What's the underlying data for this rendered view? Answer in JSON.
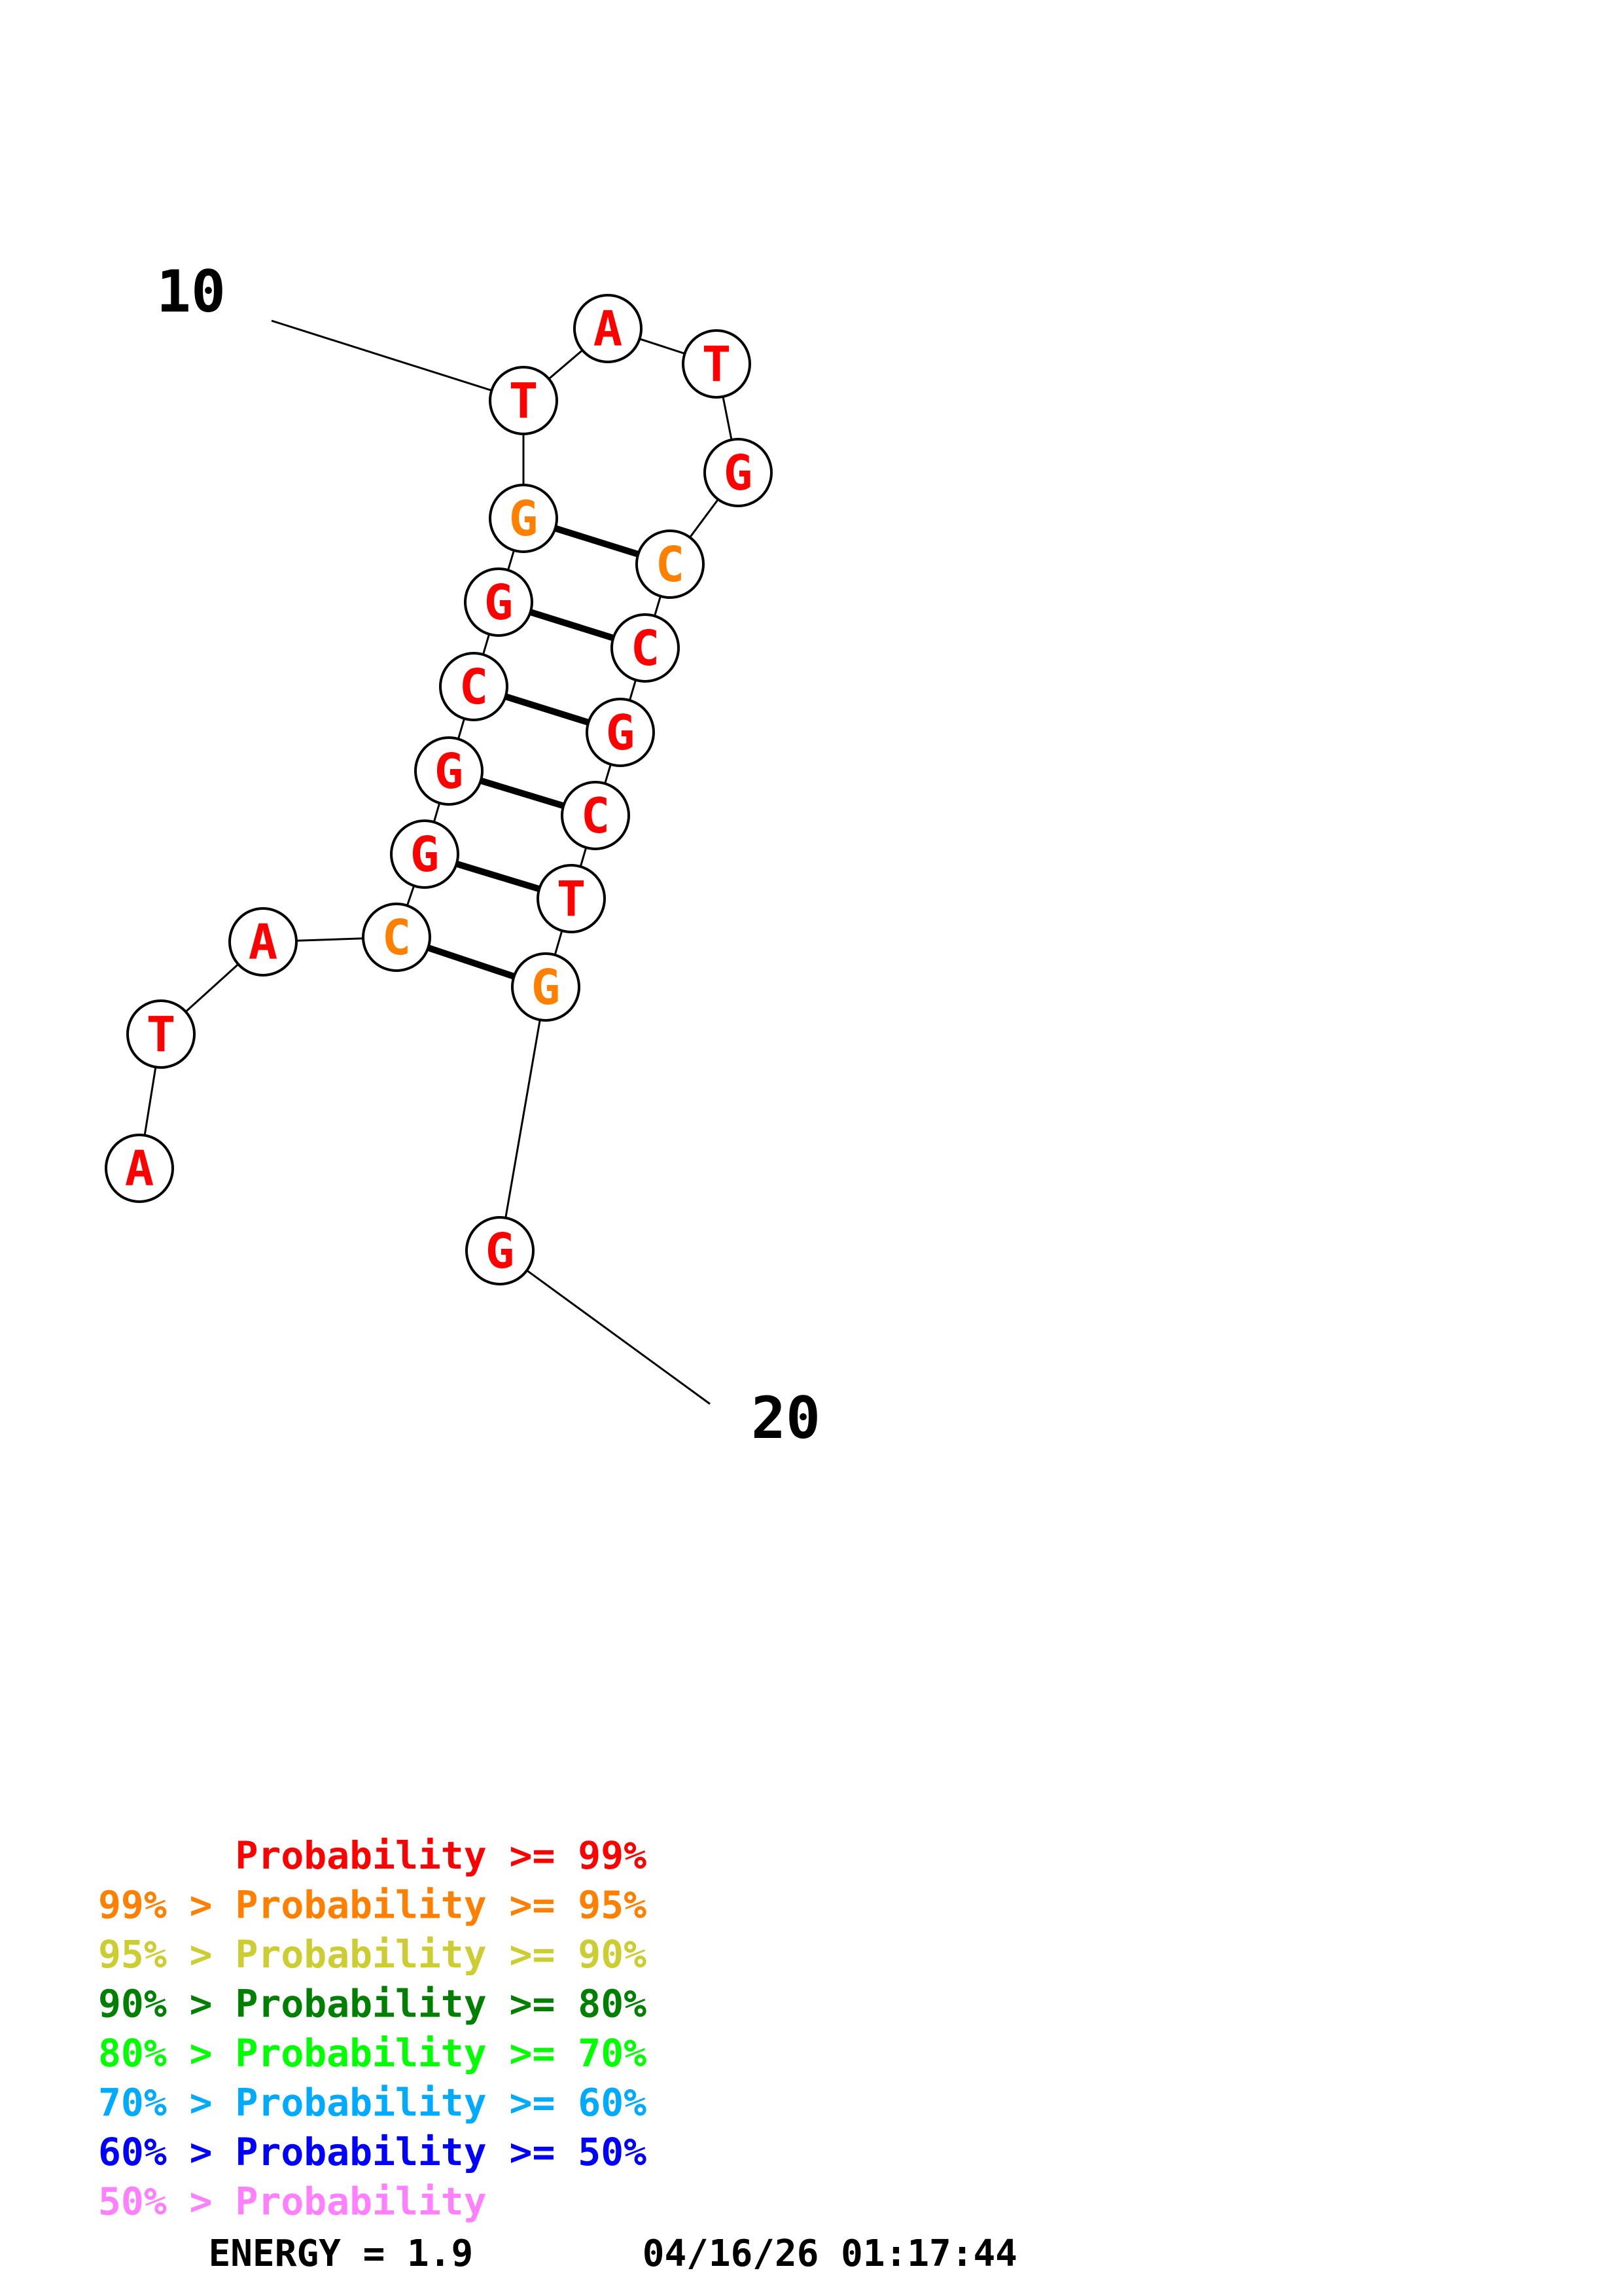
{
  "colors": {
    "p99": "#ff0000",
    "p95": "#ff8000",
    "p90": "#cccc33",
    "p80": "#008000",
    "p70": "#00ff00",
    "p60": "#00aaff",
    "p50": "#0000ff",
    "low": "#ff80ff"
  },
  "structure": {
    "bases": [
      {
        "letter": "A",
        "prob": "p99"
      },
      {
        "letter": "T",
        "prob": "p99"
      },
      {
        "letter": "A",
        "prob": "p99"
      },
      {
        "letter": "C",
        "prob": "p95"
      },
      {
        "letter": "G",
        "prob": "p99"
      },
      {
        "letter": "G",
        "prob": "p99"
      },
      {
        "letter": "C",
        "prob": "p99"
      },
      {
        "letter": "G",
        "prob": "p99"
      },
      {
        "letter": "G",
        "prob": "p95"
      },
      {
        "letter": "T",
        "prob": "p99"
      },
      {
        "letter": "A",
        "prob": "p99"
      },
      {
        "letter": "T",
        "prob": "p99"
      },
      {
        "letter": "G",
        "prob": "p99"
      },
      {
        "letter": "C",
        "prob": "p95"
      },
      {
        "letter": "C",
        "prob": "p99"
      },
      {
        "letter": "G",
        "prob": "p99"
      },
      {
        "letter": "C",
        "prob": "p99"
      },
      {
        "letter": "T",
        "prob": "p99"
      },
      {
        "letter": "G",
        "prob": "p95"
      },
      {
        "letter": "G",
        "prob": "p99"
      }
    ],
    "pairs": [
      [
        4,
        19
      ],
      [
        5,
        18
      ],
      [
        6,
        17
      ],
      [
        7,
        16
      ],
      [
        8,
        15
      ],
      [
        9,
        14
      ]
    ],
    "position_labels": [
      {
        "text": "10",
        "base": 10
      },
      {
        "text": "20",
        "base": 20
      }
    ]
  },
  "legend": [
    {
      "prefix": "",
      "label": "Probability >= 99%",
      "color": "p99"
    },
    {
      "prefix": "99% > ",
      "label": "Probability >= 95%",
      "color": "p95"
    },
    {
      "prefix": "95% > ",
      "label": "Probability >= 90%",
      "color": "p90"
    },
    {
      "prefix": "90% > ",
      "label": "Probability >= 80%",
      "color": "p80"
    },
    {
      "prefix": "80% > ",
      "label": "Probability >= 70%",
      "color": "p70"
    },
    {
      "prefix": "70% > ",
      "label": "Probability >= 60%",
      "color": "p60"
    },
    {
      "prefix": "60% > ",
      "label": "Probability >= 50%",
      "color": "p50"
    },
    {
      "prefix": "50% > ",
      "label": "Probability",
      "color": "low"
    }
  ],
  "footer": {
    "energy": "ENERGY = 1.9",
    "timestamp": "04/16/26 01:17:44"
  }
}
